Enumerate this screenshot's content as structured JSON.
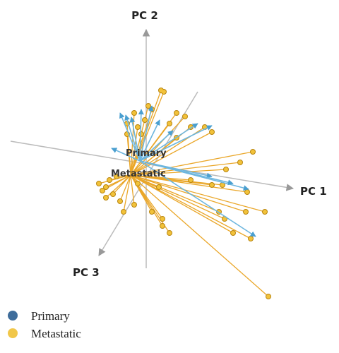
{
  "axes": {
    "pc1": "PC 1",
    "pc2": "PC 2",
    "pc3": "PC 3"
  },
  "centroid_labels": [
    "Primary",
    "Metastatic"
  ],
  "legend": [
    "Primary",
    "Metastatic"
  ]
}
